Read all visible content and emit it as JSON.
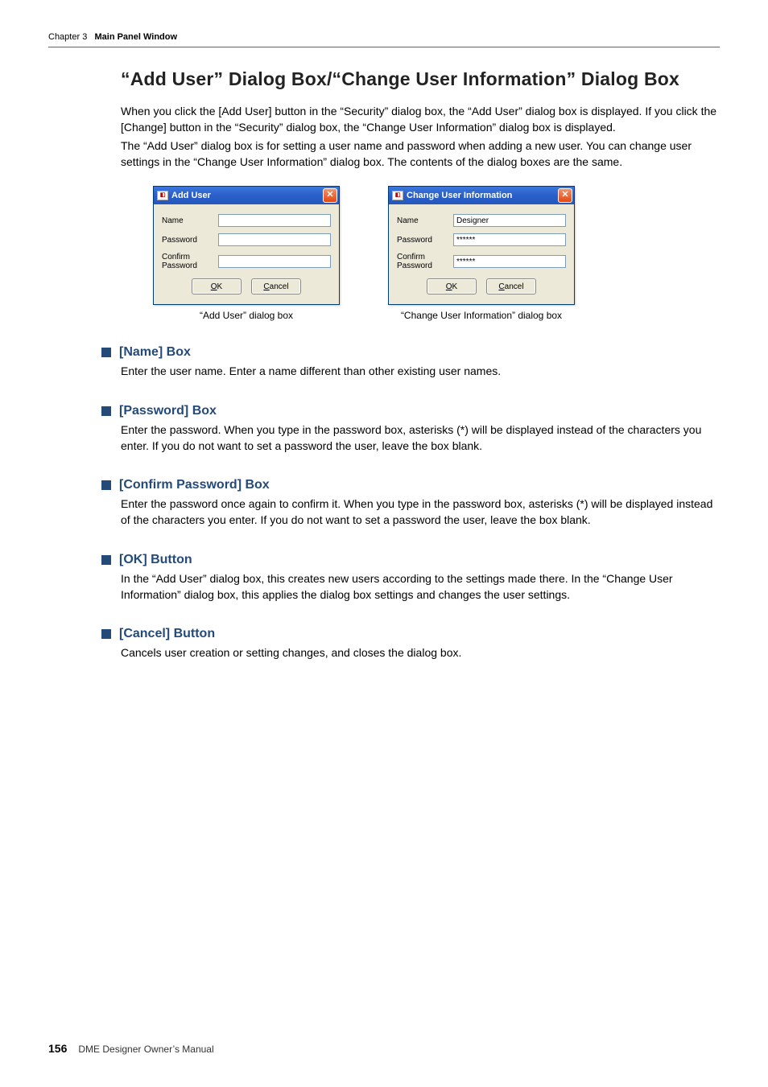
{
  "header": {
    "chapter": "Chapter 3",
    "title": "Main Panel Window"
  },
  "page": {
    "heading": "“Add User” Dialog Box/“Change User Information” Dialog Box",
    "para1": "When you click the [Add User] button in the “Security” dialog box, the “Add User” dialog box is displayed. If you click the [Change] button in the “Security” dialog box, the “Change User Information” dialog box is displayed.",
    "para2": "The “Add User” dialog box is for setting a user name and password when adding a new user. You can change user settings in the “Change User Information” dialog box. The contents of the dialog boxes are the same."
  },
  "dialogs": {
    "add": {
      "title": "Add User",
      "labels": {
        "name": "Name",
        "password": "Password",
        "confirm": "Confirm Password"
      },
      "values": {
        "name": "",
        "password": "",
        "confirm": ""
      },
      "buttons": {
        "ok_prefix": "O",
        "ok_rest": "K",
        "cancel_prefix": "C",
        "cancel_rest": "ancel"
      },
      "caption": "“Add User” dialog box"
    },
    "change": {
      "title": "Change User Information",
      "labels": {
        "name": "Name",
        "password": "Password",
        "confirm": "Confirm Password"
      },
      "values": {
        "name": "Designer",
        "password": "******",
        "confirm": "******"
      },
      "buttons": {
        "ok_prefix": "O",
        "ok_rest": "K",
        "cancel_prefix": "C",
        "cancel_rest": "ancel"
      },
      "caption": "“Change User Information” dialog box"
    }
  },
  "sections": {
    "name": {
      "head": "[Name] Box",
      "body": "Enter the user name. Enter a name different than other existing user names."
    },
    "password": {
      "head": "[Password] Box",
      "body": "Enter the password. When you type in the password box, asterisks (*) will be displayed instead of the characters you enter. If you do not want to set a password the user, leave the box blank."
    },
    "confirm": {
      "head": "[Confirm Password] Box",
      "body": "Enter the password once again to confirm it. When you type in the password box, asterisks (*) will be displayed instead of the characters you enter. If you do not want to set a password the user, leave the box blank."
    },
    "ok": {
      "head": "[OK] Button",
      "body": "In the “Add User” dialog box, this creates new users according to the settings made there. In the “Change User Information” dialog box, this applies the dialog box settings and changes the user settings."
    },
    "cancel": {
      "head": "[Cancel] Button",
      "body": "Cancels user creation or setting changes, and closes the dialog box."
    }
  },
  "footer": {
    "page_number": "156",
    "doc_title": "DME Designer Owner’s Manual"
  },
  "colors": {
    "heading_color": "#244a7a",
    "titlebar_start": "#3b77dd",
    "titlebar_end": "#2458bd",
    "dialog_bg": "#ece9d8",
    "close_btn": "#e24912",
    "input_border": "#7f9db9"
  }
}
